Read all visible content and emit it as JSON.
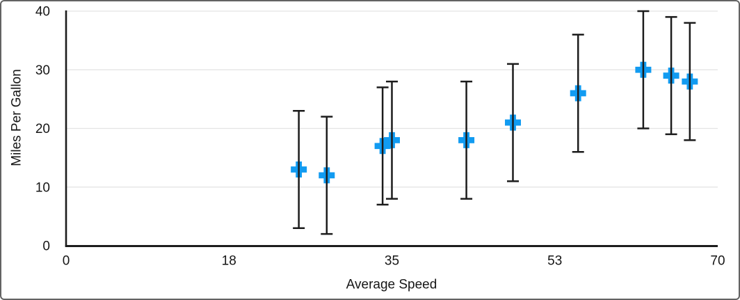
{
  "frame": {
    "background_color": "#ffffff",
    "border_color": "#636363"
  },
  "chart_data": {
    "type": "scatter",
    "title": "",
    "xlabel": "Average Speed",
    "ylabel": "Miles Per Gallon",
    "xlim": [
      0,
      70
    ],
    "ylim": [
      0,
      40
    ],
    "x_tick_values": [
      0,
      17.5,
      35,
      52.5,
      70
    ],
    "x_tick_labels": [
      "0",
      "18",
      "35",
      "53",
      "70"
    ],
    "y_tick_values": [
      0,
      10,
      20,
      30,
      40
    ],
    "y_tick_labels": [
      "0",
      "10",
      "20",
      "30",
      "40"
    ],
    "grid": "horizontal",
    "legend_position": "none",
    "axis_color": "#1c1c1c",
    "gridline_color": "#e3e3e3",
    "text_color": "#161616",
    "series": [
      {
        "name": "Miles Per Gallon",
        "marker": "plus",
        "marker_color": "#119bf1",
        "error_bar_color": "#1c1c1c",
        "error_bar_type": "symmetric",
        "points": [
          {
            "x": 25,
            "y": 13,
            "error": 10
          },
          {
            "x": 28,
            "y": 12,
            "error": 10
          },
          {
            "x": 34,
            "y": 17,
            "error": 10
          },
          {
            "x": 35,
            "y": 18,
            "error": 10
          },
          {
            "x": 43,
            "y": 18,
            "error": 10
          },
          {
            "x": 48,
            "y": 21,
            "error": 10
          },
          {
            "x": 55,
            "y": 26,
            "error": 10
          },
          {
            "x": 62,
            "y": 30,
            "error": 10
          },
          {
            "x": 65,
            "y": 29,
            "error": 10
          },
          {
            "x": 67,
            "y": 28,
            "error": 10
          }
        ]
      }
    ]
  }
}
